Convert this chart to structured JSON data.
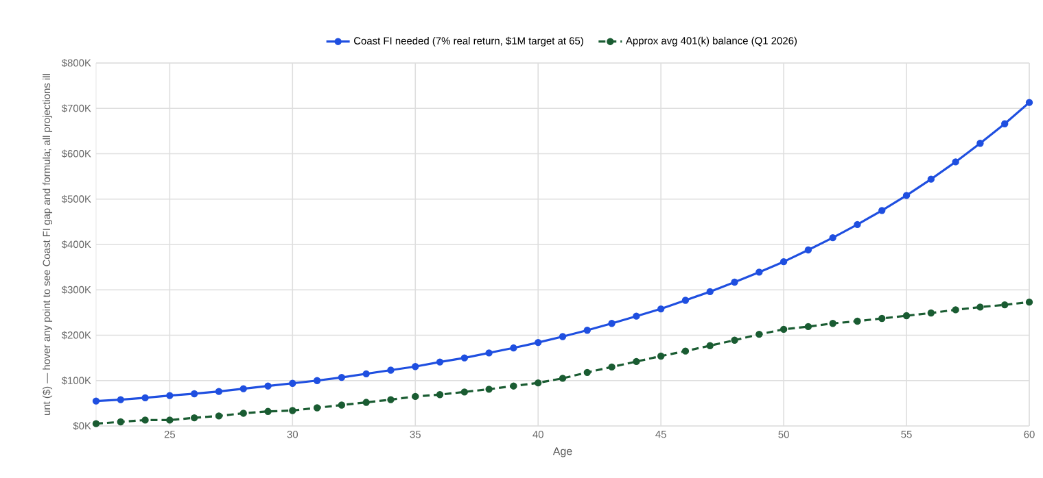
{
  "chart_data": {
    "type": "line",
    "xlabel": "Age",
    "ylabel": "unt ($) — hover any point to see Coast FI gap and formula; all projections ill",
    "x": [
      22,
      23,
      24,
      25,
      26,
      27,
      28,
      29,
      30,
      31,
      32,
      33,
      34,
      35,
      36,
      37,
      38,
      39,
      40,
      41,
      42,
      43,
      44,
      45,
      46,
      47,
      48,
      49,
      50,
      51,
      52,
      53,
      54,
      55,
      56,
      57,
      58,
      59,
      60
    ],
    "series": [
      {
        "name": "Coast FI needed (7% real return, $1M target at 65)",
        "color": "#1f4fe0",
        "line_style": "solid",
        "values": [
          55,
          58,
          62,
          67,
          71,
          76,
          82,
          88,
          94,
          100,
          107,
          115,
          123,
          131,
          141,
          150,
          161,
          172,
          184,
          197,
          211,
          226,
          242,
          258,
          277,
          296,
          317,
          339,
          362,
          388,
          415,
          444,
          475,
          508,
          544,
          582,
          623,
          666,
          713
        ]
      },
      {
        "name": "Approx avg 401(k) balance (Q1 2026)",
        "color": "#1a5c32",
        "line_style": "dashed",
        "values": [
          5,
          9,
          13,
          13,
          18,
          22,
          28,
          32,
          34,
          40,
          46,
          52,
          58,
          65,
          69,
          75,
          81,
          88,
          95,
          105,
          118,
          130,
          142,
          154,
          165,
          177,
          189,
          202,
          213,
          219,
          226,
          231,
          237,
          243,
          249,
          256,
          262,
          267,
          273
        ]
      }
    ],
    "xlim": [
      22,
      60
    ],
    "xticks": [
      25,
      30,
      35,
      40,
      45,
      50,
      55,
      60
    ],
    "ylim": [
      0,
      800
    ],
    "yticks": [
      {
        "value": 0,
        "label": "$0K"
      },
      {
        "value": 100,
        "label": "$100K"
      },
      {
        "value": 200,
        "label": "$200K"
      },
      {
        "value": 300,
        "label": "$300K"
      },
      {
        "value": 400,
        "label": "$400K"
      },
      {
        "value": 500,
        "label": "$500K"
      },
      {
        "value": 600,
        "label": "$600K"
      },
      {
        "value": 700,
        "label": "$700K"
      },
      {
        "value": 800,
        "label": "$800K"
      }
    ],
    "grid": true,
    "legend": "top",
    "marker": "circle"
  }
}
